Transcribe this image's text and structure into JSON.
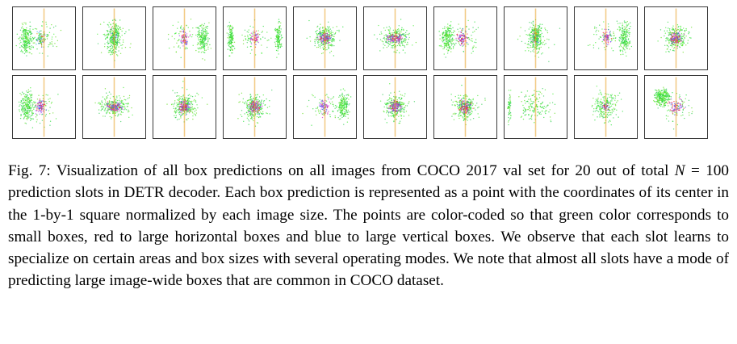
{
  "figure": {
    "caption_label": "Fig. 7:",
    "caption_part1": " Visualization of all box predictions on all images from COCO 2017 val set for 20 out of total ",
    "caption_math": "N",
    "caption_part2": " = 100 prediction slots in DETR decoder. Each box prediction is represented as a point with the coordinates of its center in the 1-by-1 square normalized by each image size. The points are color-coded so that green color corresponds to small boxes, red to large horizontal boxes and blue to large vertical boxes. We observe that each slot learns to specialize on certain areas and box sizes with several operating modes. We note that almost all slots have a mode of predicting large image-wide boxes that are common in COCO dataset."
  },
  "colors": {
    "small_boxes": "#22dd33",
    "large_horizontal_boxes": "#ee3322",
    "large_vertical_boxes": "#4455ee",
    "mixed_magenta": "#dd33cc",
    "mixed_orange": "#e8a020"
  },
  "slots": [
    {
      "pattern": "left-dense"
    },
    {
      "pattern": "vertical-oval"
    },
    {
      "pattern": "right-dense"
    },
    {
      "pattern": "edge-bands"
    },
    {
      "pattern": "center-blob"
    },
    {
      "pattern": "wide-center"
    },
    {
      "pattern": "left-dense-purple"
    },
    {
      "pattern": "vertical-oval"
    },
    {
      "pattern": "right-bands"
    },
    {
      "pattern": "center-blob"
    },
    {
      "pattern": "left-dense-purple"
    },
    {
      "pattern": "wide-center"
    },
    {
      "pattern": "center-blob"
    },
    {
      "pattern": "center-blob"
    },
    {
      "pattern": "right-sparse"
    },
    {
      "pattern": "center-blob"
    },
    {
      "pattern": "center-blob"
    },
    {
      "pattern": "sparse-frame"
    },
    {
      "pattern": "vertical-line"
    },
    {
      "pattern": "top-left-dense"
    }
  ]
}
